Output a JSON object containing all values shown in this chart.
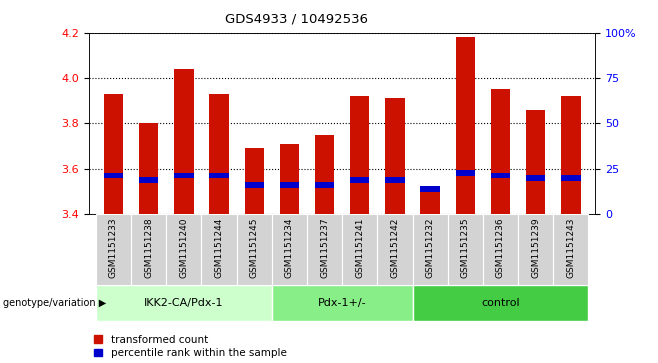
{
  "title": "GDS4933 / 10492536",
  "samples": [
    "GSM1151233",
    "GSM1151238",
    "GSM1151240",
    "GSM1151244",
    "GSM1151245",
    "GSM1151234",
    "GSM1151237",
    "GSM1151241",
    "GSM1151242",
    "GSM1151232",
    "GSM1151235",
    "GSM1151236",
    "GSM1151239",
    "GSM1151243"
  ],
  "transformed_count": [
    3.93,
    3.8,
    4.04,
    3.93,
    3.69,
    3.71,
    3.75,
    3.92,
    3.91,
    3.52,
    4.18,
    3.95,
    3.86,
    3.92
  ],
  "percentile_rank": [
    3.57,
    3.55,
    3.57,
    3.57,
    3.53,
    3.53,
    3.53,
    3.55,
    3.55,
    3.51,
    3.58,
    3.57,
    3.56,
    3.56
  ],
  "bar_bottom": 3.4,
  "ylim": [
    3.4,
    4.2
  ],
  "y2lim": [
    0,
    100
  ],
  "y2ticks": [
    0,
    25,
    50,
    75,
    100
  ],
  "y2ticklabels": [
    "0",
    "25",
    "50",
    "75",
    "100%"
  ],
  "yticks": [
    3.4,
    3.6,
    3.8,
    4.0,
    4.2
  ],
  "bar_color": "#cc1100",
  "percentile_color": "#0000cc",
  "groups": [
    {
      "label": "IKK2-CA/Pdx-1",
      "start": 0,
      "end": 5,
      "color": "#ccffcc"
    },
    {
      "label": "Pdx-1+/-",
      "start": 5,
      "end": 9,
      "color": "#88ee88"
    },
    {
      "label": "control",
      "start": 9,
      "end": 14,
      "color": "#44cc44"
    }
  ],
  "group_label_prefix": "genotype/variation",
  "legend_red": "transformed count",
  "legend_blue": "percentile rank within the sample",
  "bar_width": 0.55,
  "tick_bg": "#d3d3d3"
}
